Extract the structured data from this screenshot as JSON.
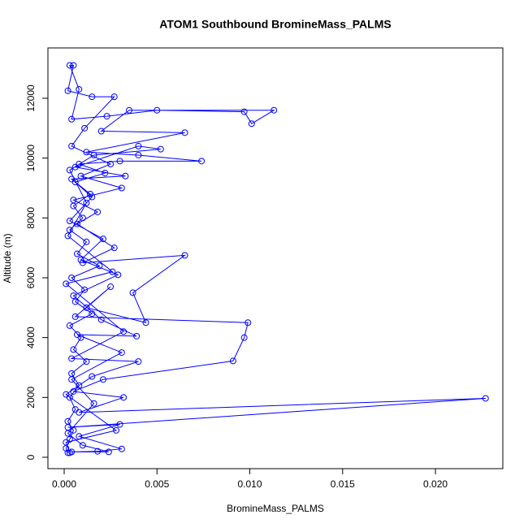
{
  "chart_data": {
    "type": "line",
    "title": "ATOM1 Southbound BromineMass_PALMS",
    "xlabel": "BromineMass_PALMS",
    "ylabel": "Altitude (m)",
    "xlim": [
      -0.000875,
      0.02363
    ],
    "ylim": [
      -380,
      13683
    ],
    "xticks": [
      {
        "value": 0,
        "label": "0.000"
      },
      {
        "value": 0.005,
        "label": "0.005"
      },
      {
        "value": 0.01,
        "label": "0.010"
      },
      {
        "value": 0.015,
        "label": "0.015"
      },
      {
        "value": 0.02,
        "label": "0.020"
      }
    ],
    "yticks": [
      0,
      2000,
      4000,
      6000,
      8000,
      10000,
      12000
    ],
    "x": [
      0.0002,
      0.0001,
      0.0003,
      0.0005,
      0.0002,
      0.0006,
      0.0003,
      0.0008,
      0.0004,
      0.0012,
      0.0005,
      0.0009,
      0.0003,
      0.0015,
      0.0006,
      0.0011,
      0.0004,
      0.0019,
      0.0007,
      0.0012,
      0.0003,
      0.001,
      0.0005,
      0.0014,
      0.0006,
      0.0022,
      0.0008,
      0.003,
      0.0074,
      0.004,
      0.0012,
      0.0065,
      0.002,
      0.0035,
      0.0113,
      0.0101,
      0.0097,
      0.005,
      0.0023,
      0.0004,
      0.0008,
      0.0003,
      0.0005,
      0.0002,
      0.0015,
      0.0027,
      0.0011,
      0.0004,
      0.0025,
      0.0009,
      0.0031,
      0.0005,
      0.0018,
      0.0007,
      0.0027,
      0.001,
      0.0065,
      0.0037,
      0.0044,
      0.0012,
      0.0025,
      0.0006,
      0.0099,
      0.0097,
      0.0091,
      0.0021,
      0.0005,
      0.0032,
      0.0008,
      0.0227,
      0.0002,
      0.003,
      0.0008,
      0.0031,
      0.0018,
      0.0004,
      0.0024,
      0.001,
      0.0002,
      0.0016,
      0.0004,
      0.0031,
      0.0007,
      0.0039,
      0.002,
      0.0005,
      0.0029,
      0.0009,
      0.0021,
      0.0003,
      0.0015,
      0.0004,
      0.0033,
      0.0006,
      0.004,
      0.0052,
      0.0016,
      0.0003,
      0.0012,
      0.0002,
      0.0026,
      0.0001,
      0.0032,
      0.0004,
      0.004,
      0.0015,
      0.0001,
      0.0028,
      0.0001,
      0.0003
    ],
    "series": [
      {
        "color": "#0000ff",
        "values": [
          150,
          300,
          600,
          900,
          1200,
          1600,
          2000,
          2400,
          2800,
          3200,
          3600,
          4000,
          4400,
          4800,
          5200,
          5600,
          6000,
          6400,
          6800,
          7200,
          7600,
          8000,
          8400,
          8800,
          9200,
          9500,
          9800,
          9900,
          9900,
          10100,
          10200,
          10850,
          10900,
          11600,
          11600,
          11150,
          11550,
          11600,
          11400,
          11300,
          12300,
          13100,
          13100,
          12250,
          12050,
          12050,
          11000,
          10400,
          9800,
          9400,
          9000,
          8600,
          8200,
          7800,
          7000,
          6500,
          6750,
          5500,
          4500,
          5000,
          5700,
          4700,
          4500,
          4000,
          3220,
          2600,
          2200,
          2000,
          1500,
          1970,
          1000,
          1100,
          700,
          280,
          200,
          180,
          180,
          400,
          800,
          1800,
          2600,
          3500,
          4100,
          4050,
          4600,
          5400,
          6100,
          6600,
          7300,
          7900,
          8700,
          9300,
          9400,
          9700,
          10400,
          10300,
          10100,
          9600,
          8500,
          7400,
          6200,
          5800,
          4200,
          3300,
          3200,
          2700,
          2100,
          900,
          500,
          150
        ]
      }
    ]
  }
}
